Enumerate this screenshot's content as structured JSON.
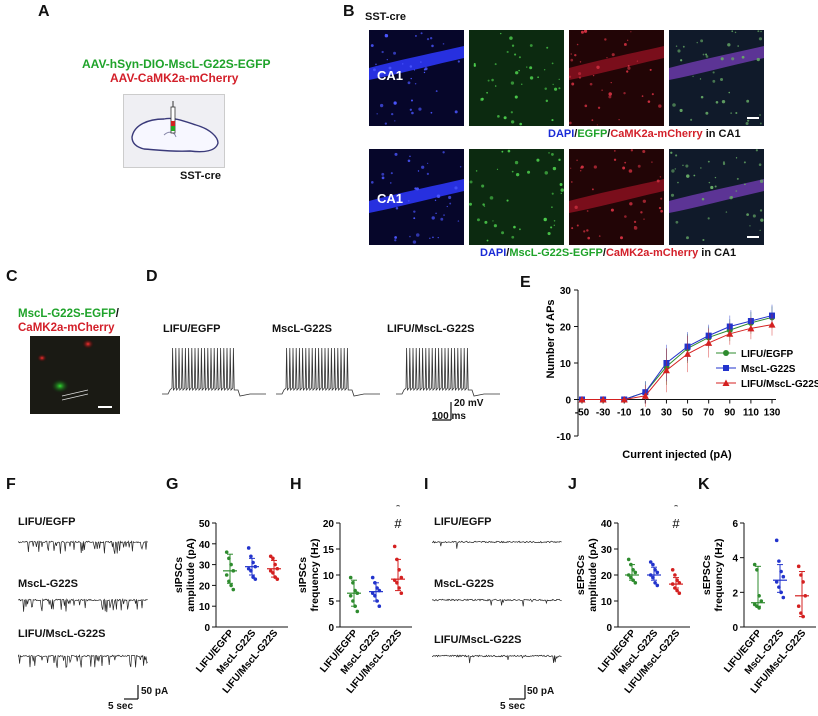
{
  "panels": {
    "A": "A",
    "B": "B",
    "C": "C",
    "D": "D",
    "E": "E",
    "F": "F",
    "G": "G",
    "H": "H",
    "I": "I",
    "J": "J",
    "K": "K"
  },
  "panelA": {
    "virus1": "AAV-hSyn-DIO-MscL-G22S-EGFP",
    "virus2": "AAV-CaMK2a-mCherry",
    "mouse": "SST-cre"
  },
  "panelB": {
    "title": "SST-cre",
    "region": "CA1",
    "caption1": {
      "dapi": "DAPI",
      "s1": "/",
      "egfp": "EGFP",
      "s2": "/",
      "mch": "CaMK2a-mCherry",
      "tail": " in CA1"
    },
    "caption2": {
      "dapi": "DAPI",
      "s1": "/",
      "egfp": "MscL-G22S-EGFP",
      "s2": "/",
      "mch": "CaMK2a-mCherry",
      "tail": " in CA1"
    }
  },
  "panelC": {
    "line1": "MscL-G22S-EGFP",
    "slash": "/",
    "line2": "CaMK2a-mCherry"
  },
  "panelD": {
    "groups": [
      "LIFU/EGFP",
      "MscL-G22S",
      "LIFU/MscL-G22S"
    ],
    "scale_v": "20 mV",
    "scale_t": "100 ms"
  },
  "panelF": {
    "groups": [
      "LIFU/EGFP",
      "MscL-G22S",
      "LIFU/MscL-G22S"
    ],
    "scale_y": "50 pA",
    "scale_x": "5 sec"
  },
  "panelI": {
    "groups": [
      "LIFU/EGFP",
      "MscL-G22S",
      "LIFU/MscL-G22S"
    ],
    "scale_y": "50 pA",
    "scale_x": "5 sec"
  },
  "colors": {
    "egfp": "#2e8b2e",
    "mscl": "#2233cc",
    "lifu_mscl": "#d42020"
  },
  "chart_data": [
    {
      "id": "E",
      "type": "line",
      "xlabel": "Current injected (pA)",
      "ylabel": "Number of APs",
      "x": [
        -50,
        -30,
        -10,
        10,
        30,
        50,
        70,
        90,
        110,
        130
      ],
      "xticks": [
        "-50",
        "-30",
        "-10",
        "10",
        "30",
        "50",
        "70",
        "90",
        "110",
        "130"
      ],
      "ylim": [
        -10,
        30
      ],
      "yticks": [
        "-10",
        "0",
        "10",
        "20",
        "30"
      ],
      "legend_position": "right",
      "series": [
        {
          "name": "LIFU/EGFP",
          "marker": "circle",
          "values": [
            0,
            0,
            0,
            2,
            9,
            14,
            17,
            19,
            21,
            22.5
          ],
          "err": [
            0,
            0,
            0,
            3,
            5,
            4,
            3,
            3,
            3,
            3
          ]
        },
        {
          "name": "MscL-G22S",
          "marker": "square",
          "values": [
            0,
            0,
            0,
            2,
            10,
            14.5,
            17.5,
            20,
            21.5,
            23
          ],
          "err": [
            0,
            0,
            0,
            3,
            5,
            4,
            3,
            3,
            3,
            3
          ]
        },
        {
          "name": "LIFU/MscL-G22S",
          "marker": "triangle",
          "values": [
            0,
            0,
            0,
            1,
            8,
            12.5,
            15.5,
            18,
            19.5,
            20.5
          ],
          "err": [
            0,
            0,
            0,
            3,
            6,
            5,
            4,
            3,
            3,
            3
          ]
        }
      ]
    },
    {
      "id": "G",
      "type": "scatter",
      "ylabel": "sIPSCs\namplitude (pA)",
      "ylim": [
        0,
        50
      ],
      "yticks": [
        "0",
        "10",
        "20",
        "30",
        "40",
        "50"
      ],
      "categories": [
        "LIFU/EGFP",
        "MscL-G22S",
        "LIFU/MscL-G22S"
      ],
      "series": [
        {
          "name": "LIFU/EGFP",
          "points": [
            36,
            33,
            30,
            27,
            25,
            22,
            20,
            18
          ],
          "median": 27,
          "q": [
            21,
            35
          ]
        },
        {
          "name": "MscL-G22S",
          "points": [
            38,
            34,
            31,
            29,
            28,
            27,
            24,
            23
          ],
          "median": 29,
          "q": [
            25,
            33
          ]
        },
        {
          "name": "LIFU/MscL-G22S",
          "points": [
            34,
            33,
            30,
            28,
            27,
            26,
            24,
            23
          ],
          "median": 28,
          "q": [
            24,
            32
          ]
        }
      ]
    },
    {
      "id": "H",
      "type": "scatter",
      "ylabel": "sIPSCs\nfrequency (Hz)",
      "ylim": [
        0,
        20
      ],
      "yticks": [
        "0",
        "5",
        "10",
        "15",
        "20"
      ],
      "categories": [
        "LIFU/EGFP",
        "MscL-G22S",
        "LIFU/MscL-G22S"
      ],
      "annotations": [
        "*",
        "#"
      ],
      "series": [
        {
          "name": "LIFU/EGFP",
          "points": [
            9.5,
            8.5,
            7,
            6.5,
            6,
            5,
            4,
            3
          ],
          "median": 6.5,
          "q": [
            4,
            9
          ]
        },
        {
          "name": "MscL-G22S",
          "points": [
            9.5,
            8.5,
            7.5,
            7,
            6.5,
            6,
            5,
            4
          ],
          "median": 6.8,
          "q": [
            5,
            8.5
          ]
        },
        {
          "name": "LIFU/MscL-G22S",
          "points": [
            15.5,
            13,
            11,
            9.5,
            9,
            8.5,
            7.5,
            6.5
          ],
          "median": 9.2,
          "q": [
            7,
            13
          ]
        }
      ]
    },
    {
      "id": "J",
      "type": "scatter",
      "ylabel": "sEPSCs\namplitude (pA)",
      "ylim": [
        0,
        40
      ],
      "yticks": [
        "0",
        "10",
        "20",
        "30",
        "40"
      ],
      "categories": [
        "LIFU/EGFP",
        "MscL-G22S",
        "LIFU/MscL-G22S"
      ],
      "annotations": [
        "*",
        "#"
      ],
      "series": [
        {
          "name": "LIFU/EGFP",
          "points": [
            26,
            24,
            22,
            21,
            20,
            19,
            18,
            17
          ],
          "median": 20,
          "q": [
            18,
            24
          ]
        },
        {
          "name": "MscL-G22S",
          "points": [
            25,
            24,
            22,
            21,
            20,
            19,
            17,
            16
          ],
          "median": 20,
          "q": [
            18,
            23
          ]
        },
        {
          "name": "LIFU/MscL-G22S",
          "points": [
            22,
            20,
            18,
            17,
            16.5,
            15,
            14,
            13
          ],
          "median": 16.5,
          "q": [
            15,
            19
          ]
        }
      ]
    },
    {
      "id": "K",
      "type": "scatter",
      "ylabel": "sEPSCs\nfrequency (Hz)",
      "ylim": [
        0,
        6
      ],
      "yticks": [
        "0",
        "2",
        "4",
        "6"
      ],
      "categories": [
        "LIFU/EGFP",
        "MscL-G22S",
        "LIFU/MscL-G22S"
      ],
      "series": [
        {
          "name": "LIFU/EGFP",
          "points": [
            3.6,
            3.3,
            1.8,
            1.5,
            1.3,
            1.2,
            1.1
          ],
          "median": 1.4,
          "q": [
            1.2,
            3.5
          ]
        },
        {
          "name": "MscL-G22S",
          "points": [
            5.0,
            3.8,
            3.2,
            2.9,
            2.6,
            2.3,
            2.0,
            1.7
          ],
          "median": 2.7,
          "q": [
            2.0,
            3.6
          ]
        },
        {
          "name": "LIFU/MscL-G22S",
          "points": [
            3.5,
            3.0,
            2.6,
            1.8,
            1.2,
            0.8,
            0.6
          ],
          "median": 1.8,
          "q": [
            0.6,
            3.2
          ]
        }
      ]
    }
  ]
}
